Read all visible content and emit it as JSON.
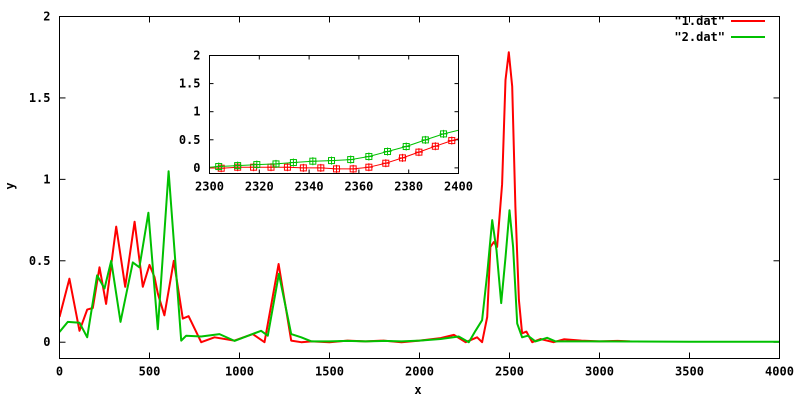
{
  "chart_data": [
    {
      "type": "line",
      "title": "",
      "xlabel": "x",
      "ylabel": "y",
      "xlim": [
        0,
        4000
      ],
      "ylim": [
        -0.1,
        2
      ],
      "xticks": [
        "0",
        "500",
        "1000",
        "1500",
        "2000",
        "2500",
        "3000",
        "3500",
        "4000"
      ],
      "yticks": [
        "0",
        "0.5",
        "1",
        "1.5",
        "2"
      ],
      "grid": false,
      "legend": "top-right",
      "series": [
        {
          "name": "\"1.dat\"",
          "color": "#ff0000",
          "points": [
            [
              0,
              0.155
            ],
            [
              55,
              0.39
            ],
            [
              111,
              0.07
            ],
            [
              154,
              0.2
            ],
            [
              185,
              0.21
            ],
            [
              222,
              0.46
            ],
            [
              259,
              0.235
            ],
            [
              315,
              0.71
            ],
            [
              365,
              0.34
            ],
            [
              417,
              0.74
            ],
            [
              463,
              0.34
            ],
            [
              500,
              0.475
            ],
            [
              528,
              0.4
            ],
            [
              546,
              0.3
            ],
            [
              583,
              0.165
            ],
            [
              635,
              0.5
            ],
            [
              685,
              0.145
            ],
            [
              717,
              0.16
            ],
            [
              787,
              0.0
            ],
            [
              861,
              0.03
            ],
            [
              972,
              0.01
            ],
            [
              1074,
              0.05
            ],
            [
              1139,
              0.0
            ],
            [
              1217,
              0.48
            ],
            [
              1287,
              0.01
            ],
            [
              1343,
              0.0
            ],
            [
              1400,
              0.005
            ],
            [
              1500,
              0.0
            ],
            [
              1600,
              0.01
            ],
            [
              1700,
              0.005
            ],
            [
              1800,
              0.01
            ],
            [
              1900,
              0.0
            ],
            [
              2000,
              0.01
            ],
            [
              2117,
              0.025
            ],
            [
              2191,
              0.045
            ],
            [
              2256,
              0.0
            ],
            [
              2320,
              0.03
            ],
            [
              2348,
              0.0
            ],
            [
              2376,
              0.155
            ],
            [
              2394,
              0.585
            ],
            [
              2413,
              0.615
            ],
            [
              2431,
              0.585
            ],
            [
              2459,
              0.97
            ],
            [
              2478,
              1.61
            ],
            [
              2496,
              1.78
            ],
            [
              2515,
              1.57
            ],
            [
              2533,
              0.83
            ],
            [
              2552,
              0.26
            ],
            [
              2570,
              0.055
            ],
            [
              2594,
              0.065
            ],
            [
              2626,
              0.0
            ],
            [
              2672,
              0.02
            ],
            [
              2745,
              0.0
            ],
            [
              2802,
              0.018
            ],
            [
              2900,
              0.01
            ],
            [
              3000,
              0.005
            ],
            [
              3100,
              0.008
            ],
            [
              3170,
              0.005
            ]
          ]
        },
        {
          "name": "\"2.dat\"",
          "color": "#00c000",
          "points": [
            [
              0,
              0.063
            ],
            [
              46,
              0.125
            ],
            [
              111,
              0.12
            ],
            [
              154,
              0.03
            ],
            [
              209,
              0.41
            ],
            [
              250,
              0.33
            ],
            [
              287,
              0.5
            ],
            [
              339,
              0.125
            ],
            [
              407,
              0.49
            ],
            [
              444,
              0.46
            ],
            [
              494,
              0.795
            ],
            [
              546,
              0.08
            ],
            [
              606,
              1.05
            ],
            [
              676,
              0.01
            ],
            [
              704,
              0.04
            ],
            [
              787,
              0.035
            ],
            [
              889,
              0.05
            ],
            [
              972,
              0.008
            ],
            [
              1120,
              0.07
            ],
            [
              1157,
              0.04
            ],
            [
              1219,
              0.42
            ],
            [
              1287,
              0.05
            ],
            [
              1343,
              0.03
            ],
            [
              1400,
              0.005
            ],
            [
              1500,
              0.005
            ],
            [
              1600,
              0.008
            ],
            [
              1700,
              0.005
            ],
            [
              1800,
              0.008
            ],
            [
              1900,
              0.005
            ],
            [
              2000,
              0.01
            ],
            [
              2117,
              0.02
            ],
            [
              2218,
              0.035
            ],
            [
              2274,
              0.0
            ],
            [
              2311,
              0.07
            ],
            [
              2348,
              0.135
            ],
            [
              2376,
              0.42
            ],
            [
              2404,
              0.75
            ],
            [
              2428,
              0.565
            ],
            [
              2454,
              0.24
            ],
            [
              2478,
              0.52
            ],
            [
              2500,
              0.81
            ],
            [
              2520,
              0.585
            ],
            [
              2543,
              0.115
            ],
            [
              2570,
              0.03
            ],
            [
              2602,
              0.04
            ],
            [
              2644,
              0.005
            ],
            [
              2709,
              0.027
            ],
            [
              2756,
              0.005
            ],
            [
              2900,
              0.005
            ],
            [
              3000,
              0.005
            ],
            [
              3500,
              0.003
            ],
            [
              4000,
              0.003
            ]
          ]
        }
      ]
    },
    {
      "type": "line",
      "title": "",
      "xlim": [
        2300,
        2400
      ],
      "ylim": [
        -0.1,
        2
      ],
      "xticks": [
        "2300",
        "2320",
        "2340",
        "2360",
        "2380",
        "2400"
      ],
      "yticks": [
        "0",
        "0.5",
        "1",
        "1.5",
        "2"
      ],
      "grid": false,
      "markers": "square-cross",
      "series": [
        {
          "color": "#ff0000",
          "line": [
            [
              2300,
              0.0
            ],
            [
              2400,
              0.52
            ]
          ],
          "points": [
            [
              2304.7,
              -0.006
            ],
            [
              2311.3,
              0.012
            ],
            [
              2317.7,
              0.012
            ],
            [
              2324.7,
              0.012
            ],
            [
              2331.3,
              0.012
            ],
            [
              2337.7,
              0.0
            ],
            [
              2344.7,
              0.0
            ],
            [
              2351,
              -0.018
            ],
            [
              2357.7,
              -0.018
            ],
            [
              2364,
              0.012
            ],
            [
              2370.8,
              0.083
            ],
            [
              2377.5,
              0.178
            ],
            [
              2384.1,
              0.28
            ],
            [
              2390.7,
              0.385
            ],
            [
              2397.3,
              0.486
            ]
          ]
        },
        {
          "color": "#00c000",
          "line": [
            [
              2300,
              0.01
            ],
            [
              2400,
              0.67
            ]
          ],
          "points": [
            [
              2303.7,
              0.024
            ],
            [
              2311.3,
              0.041
            ],
            [
              2319,
              0.059
            ],
            [
              2326.7,
              0.071
            ],
            [
              2333.7,
              0.095
            ],
            [
              2341.5,
              0.119
            ],
            [
              2349,
              0.13
            ],
            [
              2356.7,
              0.148
            ],
            [
              2364,
              0.202
            ],
            [
              2371.5,
              0.291
            ],
            [
              2379,
              0.38
            ],
            [
              2386.7,
              0.498
            ],
            [
              2394,
              0.605
            ]
          ]
        }
      ]
    }
  ]
}
